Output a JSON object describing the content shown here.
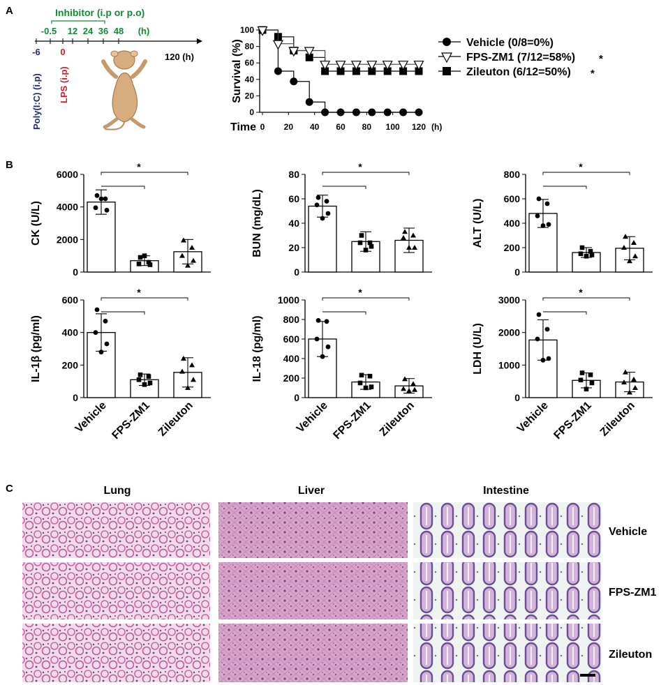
{
  "panels": {
    "a": "A",
    "b": "B",
    "c": "C"
  },
  "timeline": {
    "inhibitor_label": "Inhibitor (i.p or p.o)",
    "ticks_top": [
      "-0.5",
      "12",
      "24",
      "36",
      "48",
      "(h)"
    ],
    "end_label": "120 (h)",
    "t_minus6": "-6",
    "t_zero": "0",
    "polyic_label": "Poly(I:C) (i.p)",
    "lps_label": "LPS (i.p)",
    "colors": {
      "green": "#138a36",
      "navy": "#1f2a7a",
      "red": "#d01f2b"
    }
  },
  "chart_data": [
    {
      "type": "line",
      "id": "survival",
      "ylabel": "Survival (%)",
      "xlabel": "Time",
      "x_unit": "(h)",
      "ylim": [
        0,
        100
      ],
      "xlim": [
        0,
        120
      ],
      "yticks": [
        0,
        20,
        40,
        60,
        80,
        100
      ],
      "xticks": [
        0,
        20,
        40,
        60,
        80,
        100,
        120
      ],
      "series": [
        {
          "name": "Vehicle (0/8=0%)",
          "marker": "circle",
          "sig": "",
          "x": [
            0,
            12,
            24,
            36,
            48,
            60,
            72,
            84,
            96,
            108,
            120
          ],
          "y": [
            100,
            50,
            37.5,
            12.5,
            0,
            0,
            0,
            0,
            0,
            0,
            0
          ]
        },
        {
          "name": "FPS-ZM1 (7/12=58%)",
          "marker": "triangle",
          "sig": "*",
          "x": [
            0,
            12,
            24,
            36,
            48,
            60,
            72,
            84,
            96,
            108,
            120
          ],
          "y": [
            100,
            83.3,
            75,
            75,
            58.3,
            58.3,
            58.3,
            58.3,
            58.3,
            58.3,
            58.3
          ]
        },
        {
          "name": "Zileuton (6/12=50%)",
          "marker": "square",
          "sig": "*",
          "x": [
            0,
            12,
            24,
            36,
            48,
            60,
            72,
            84,
            96,
            108,
            120
          ],
          "y": [
            100,
            91.7,
            75,
            66.7,
            50,
            50,
            50,
            50,
            50,
            50,
            50
          ]
        }
      ]
    },
    {
      "type": "bar",
      "id": "ck",
      "ylabel": "CK (U/L)",
      "ylim": [
        0,
        6000
      ],
      "yticks": [
        0,
        2000,
        4000,
        6000
      ],
      "categories": [
        "Vehicle",
        "FPS-ZM1",
        "Zileuton"
      ],
      "values": [
        4300,
        700,
        1250
      ],
      "sd": [
        750,
        300,
        750
      ],
      "sig": "*",
      "points": [
        [
          4700,
          4500,
          3950,
          3800,
          4500
        ],
        [
          900,
          600,
          500,
          450,
          1000
        ],
        [
          1950,
          1500,
          1000,
          700,
          400
        ]
      ]
    },
    {
      "type": "bar",
      "id": "bun",
      "ylabel": "BUN (mg/dL)",
      "ylim": [
        0,
        80
      ],
      "yticks": [
        0,
        20,
        40,
        60,
        80
      ],
      "categories": [
        "Vehicle",
        "FPS-ZM1",
        "Zileuton"
      ],
      "values": [
        54,
        25,
        26
      ],
      "sd": [
        9,
        8,
        10
      ],
      "sig": "*",
      "points": [
        [
          61,
          58,
          55,
          48,
          44
        ],
        [
          30,
          24,
          24,
          21,
          18
        ],
        [
          33,
          30,
          28,
          20,
          20
        ]
      ]
    },
    {
      "type": "bar",
      "id": "alt",
      "ylabel": "ALT (U/L)",
      "ylim": [
        0,
        800
      ],
      "yticks": [
        0,
        200,
        400,
        600,
        800
      ],
      "categories": [
        "Vehicle",
        "FPS-ZM1",
        "Zileuton"
      ],
      "values": [
        480,
        160,
        195
      ],
      "sd": [
        115,
        40,
        95
      ],
      "sig": "*",
      "points": [
        [
          600,
          560,
          460,
          390,
          380
        ],
        [
          200,
          170,
          150,
          140,
          130
        ],
        [
          290,
          240,
          200,
          130,
          90
        ]
      ]
    },
    {
      "type": "bar",
      "id": "il1b",
      "ylabel": "IL-1β (pg/ml)",
      "ylim": [
        0,
        600
      ],
      "yticks": [
        0,
        200,
        400,
        600
      ],
      "categories": [
        "Vehicle",
        "FPS-ZM1",
        "Zileuton"
      ],
      "values": [
        400,
        110,
        155
      ],
      "sd": [
        115,
        35,
        90
      ],
      "sig": "*",
      "points": [
        [
          540,
          470,
          400,
          330,
          280
        ],
        [
          140,
          130,
          110,
          90,
          80
        ],
        [
          240,
          200,
          160,
          110,
          60
        ]
      ]
    },
    {
      "type": "bar",
      "id": "il18",
      "ylabel": "IL-18 (pg/ml)",
      "ylim": [
        0,
        1000
      ],
      "yticks": [
        0,
        200,
        400,
        600,
        800,
        1000
      ],
      "categories": [
        "Vehicle",
        "FPS-ZM1",
        "Zileuton"
      ],
      "values": [
        600,
        160,
        120
      ],
      "sd": [
        180,
        75,
        75
      ],
      "sig": "*",
      "points": [
        [
          790,
          780,
          600,
          520,
          420
        ],
        [
          230,
          220,
          150,
          110,
          100
        ],
        [
          190,
          140,
          90,
          80,
          70
        ]
      ]
    },
    {
      "type": "bar",
      "id": "ldh",
      "ylabel": "LDH (U/L)",
      "ylim": [
        0,
        3000
      ],
      "yticks": [
        0,
        1000,
        2000,
        3000
      ],
      "categories": [
        "Vehicle",
        "FPS-ZM1",
        "Zileuton"
      ],
      "values": [
        1770,
        530,
        480
      ],
      "sd": [
        620,
        230,
        300
      ],
      "sig": "*",
      "points": [
        [
          2550,
          2100,
          1800,
          1200,
          1150
        ],
        [
          760,
          700,
          540,
          450,
          260
        ],
        [
          780,
          560,
          470,
          300,
          160
        ]
      ]
    }
  ],
  "histology": {
    "columns": [
      "Lung",
      "Liver",
      "Intestine"
    ],
    "rows": [
      "Vehicle",
      "FPS-ZM1",
      "Zileuton"
    ]
  }
}
